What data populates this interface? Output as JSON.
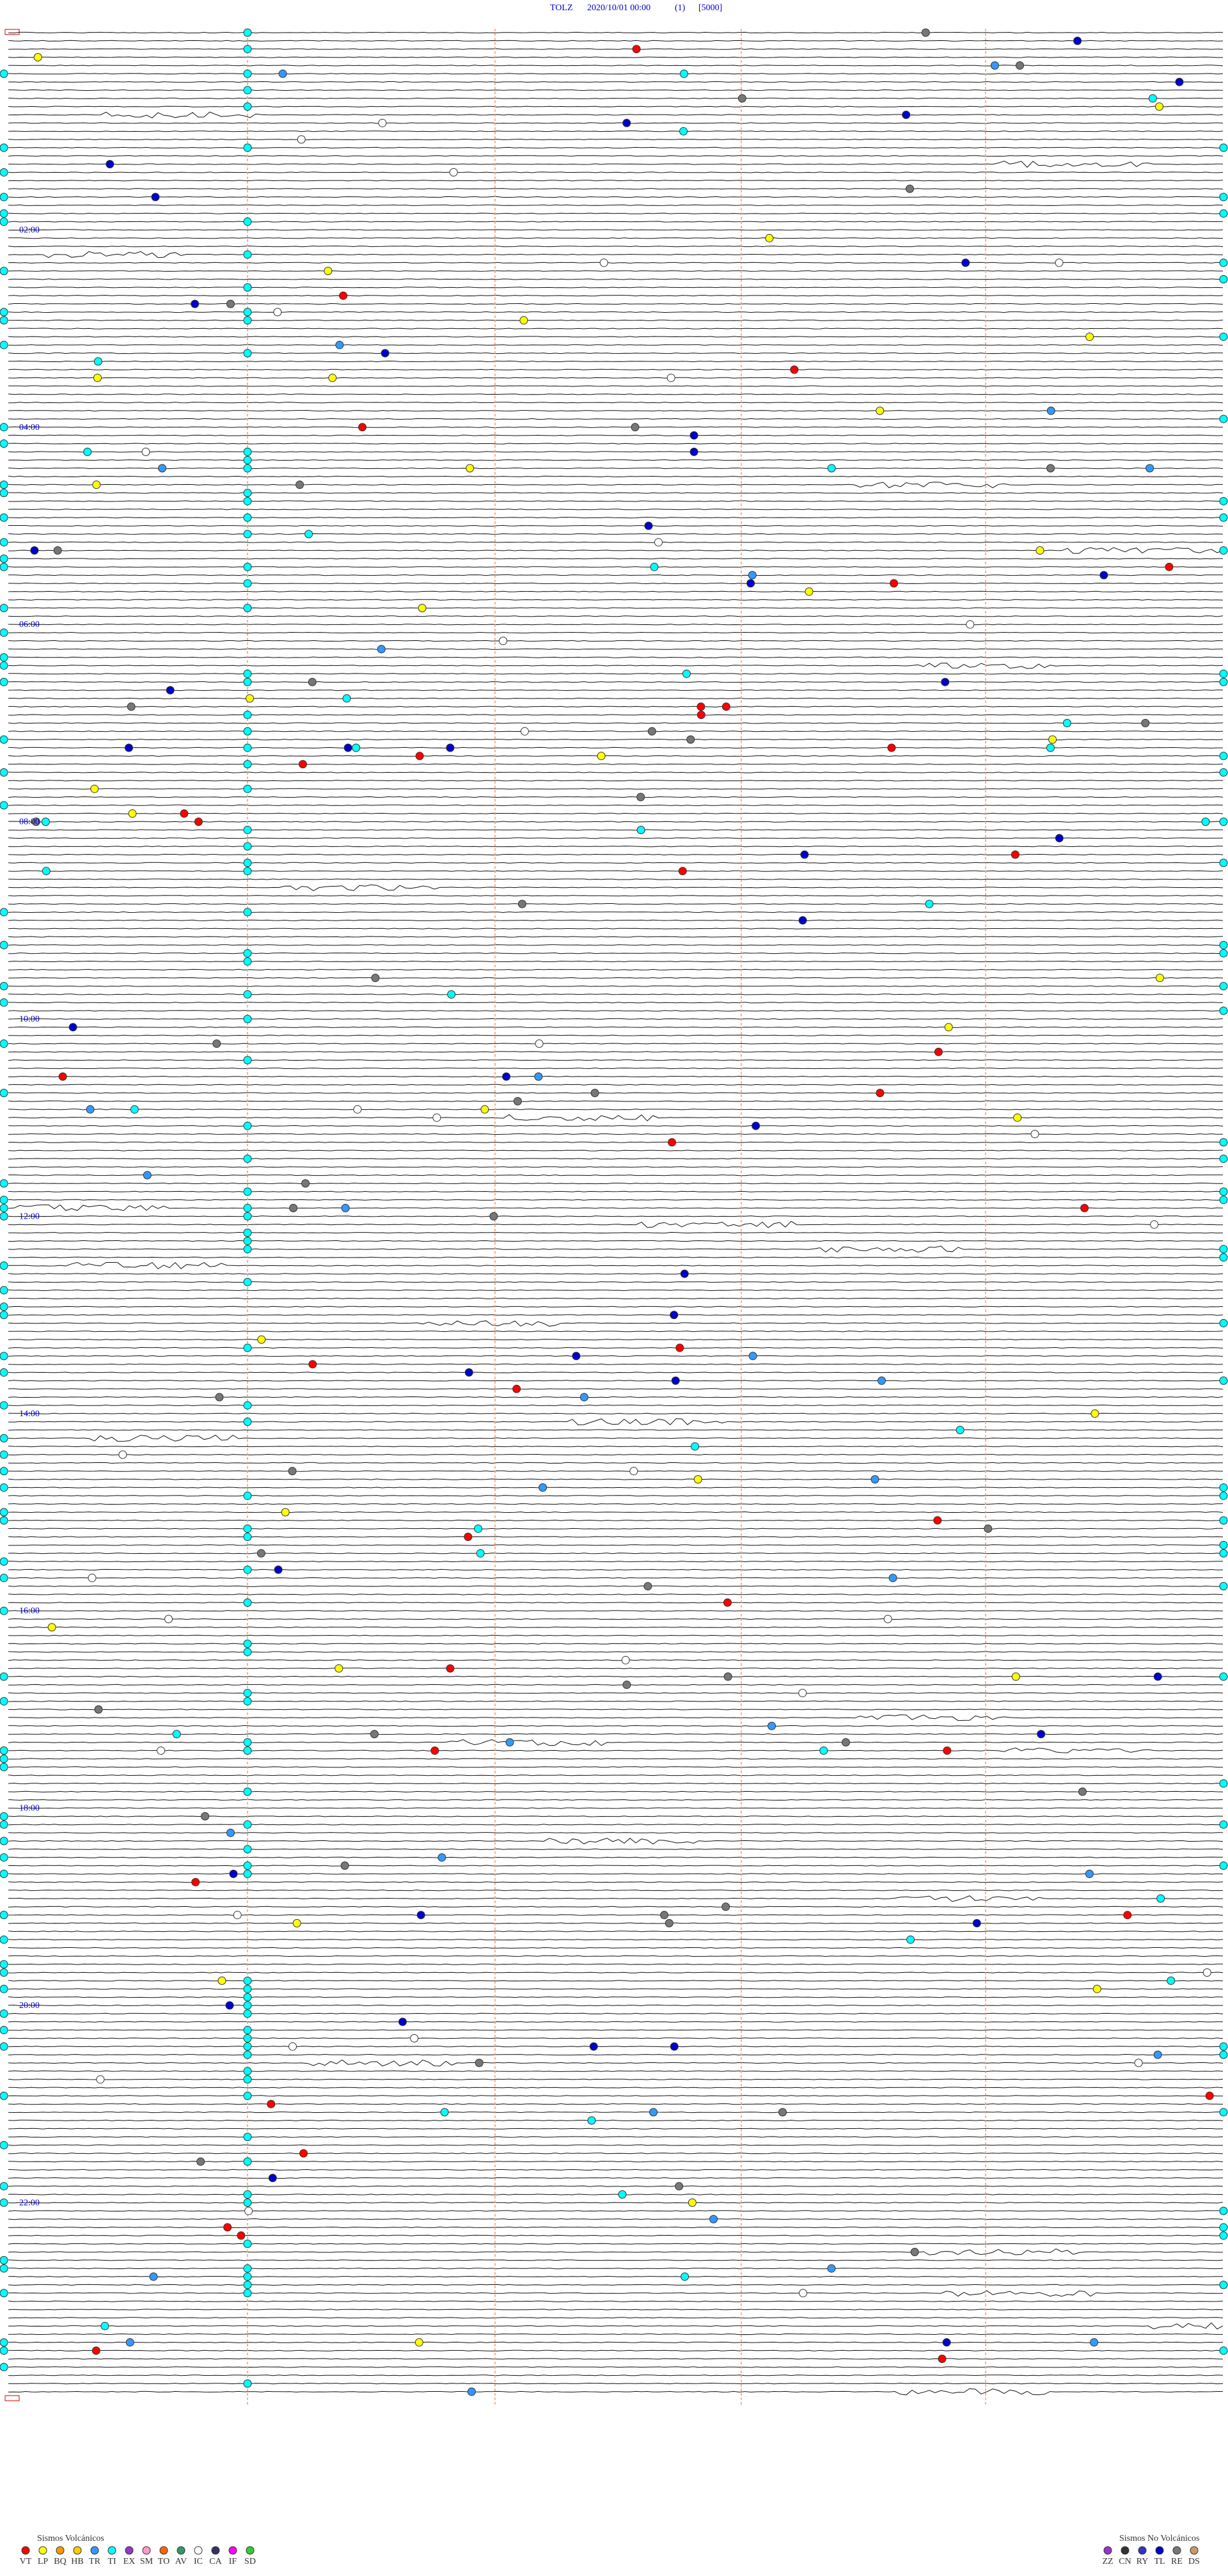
{
  "header": {
    "station": "TOLZ",
    "datetime": "2020/10/01 00:00",
    "channel": "(1)",
    "scale": "[5000]"
  },
  "hour_labels": [
    "02:00",
    "04:00",
    "06:00",
    "08:00",
    "10:00",
    "12:00",
    "14:00",
    "16:00",
    "18:00",
    "20:00",
    "22:00"
  ],
  "legend_volcanic": {
    "title": "Sismos Volcánicos",
    "items": [
      {
        "code": "VT",
        "color": "#ff0000"
      },
      {
        "code": "LP",
        "color": "#ffff00"
      },
      {
        "code": "BQ",
        "color": "#ff9900"
      },
      {
        "code": "HB",
        "color": "#ffcc00"
      },
      {
        "code": "TR",
        "color": "#3399ff"
      },
      {
        "code": "TI",
        "color": "#00ffff"
      },
      {
        "code": "EX",
        "color": "#9933cc"
      },
      {
        "code": "SM",
        "color": "#ff99cc"
      },
      {
        "code": "TO",
        "color": "#ff6600"
      },
      {
        "code": "AV",
        "color": "#339966"
      },
      {
        "code": "IC",
        "color": "#ffffff"
      },
      {
        "code": "CA",
        "color": "#333366"
      },
      {
        "code": "IF",
        "color": "#ff00ff"
      },
      {
        "code": "SD",
        "color": "#33cc33"
      }
    ]
  },
  "legend_nonvolcanic": {
    "title": "Sismos No Volcánicos",
    "items": [
      {
        "code": "ZZ",
        "color": "#9933cc"
      },
      {
        "code": "CN",
        "color": "#333333"
      },
      {
        "code": "RY",
        "color": "#3333cc"
      },
      {
        "code": "TL",
        "color": "#0000cc"
      },
      {
        "code": "RE",
        "color": "#777777"
      },
      {
        "code": "DS",
        "color": "#cc9966"
      }
    ]
  }
}
